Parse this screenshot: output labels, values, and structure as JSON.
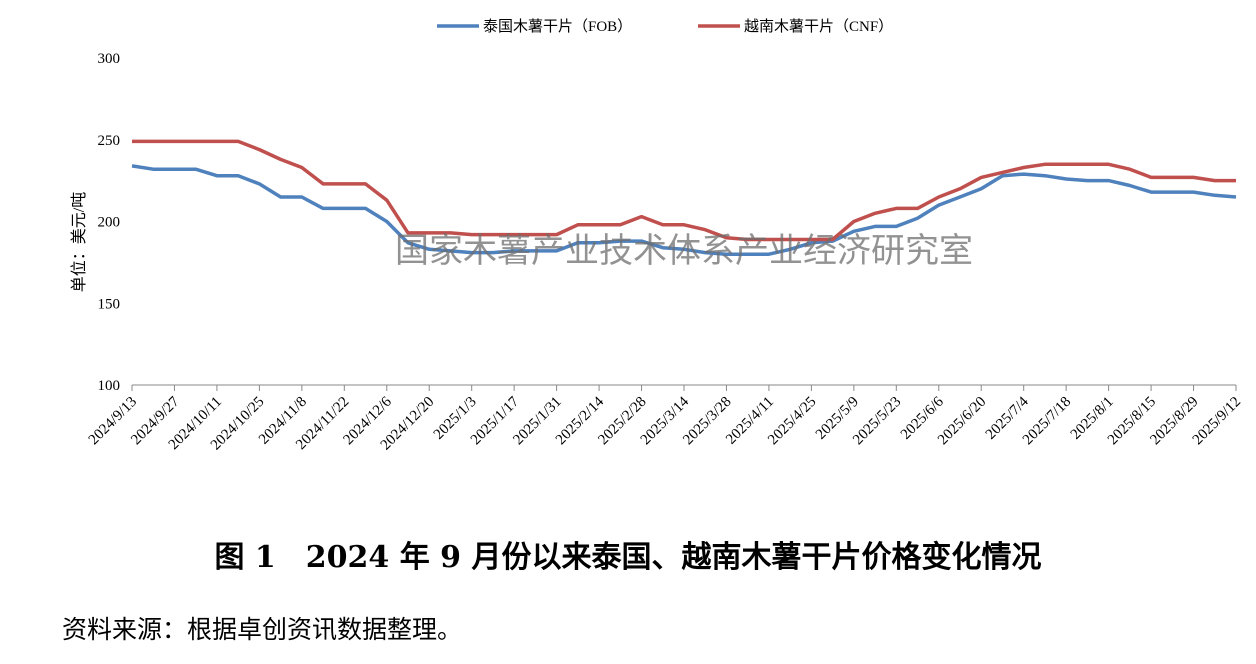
{
  "chart_data": {
    "type": "line",
    "ylabel": "单位：美元/吨",
    "ylim": [
      100,
      300
    ],
    "yticks": [
      100,
      150,
      200,
      250,
      300
    ],
    "grid": false,
    "legend_position": "top",
    "watermark": "国家木薯产业技术体系产业经济研究室",
    "x": [
      "2024/9/13",
      "2024/9/20",
      "2024/9/27",
      "2024/10/4",
      "2024/10/11",
      "2024/10/18",
      "2024/10/25",
      "2024/11/1",
      "2024/11/8",
      "2024/11/15",
      "2024/11/22",
      "2024/11/29",
      "2024/12/6",
      "2024/12/13",
      "2024/12/20",
      "2024/12/27",
      "2025/1/3",
      "2025/1/10",
      "2025/1/17",
      "2025/1/24",
      "2025/1/31",
      "2025/2/7",
      "2025/2/14",
      "2025/2/21",
      "2025/2/28",
      "2025/3/7",
      "2025/3/14",
      "2025/3/21",
      "2025/3/28",
      "2025/4/4",
      "2025/4/11",
      "2025/4/18",
      "2025/4/25",
      "2025/5/2",
      "2025/5/9",
      "2025/5/16",
      "2025/5/23",
      "2025/5/30",
      "2025/6/6",
      "2025/6/13",
      "2025/6/20",
      "2025/6/27",
      "2025/7/4",
      "2025/7/11",
      "2025/7/18",
      "2025/7/25",
      "2025/8/1",
      "2025/8/8",
      "2025/8/15",
      "2025/8/22",
      "2025/8/29",
      "2025/9/5",
      "2025/9/12"
    ],
    "xtick_labels": [
      "2024/9/13",
      "2024/9/27",
      "2024/10/11",
      "2024/10/25",
      "2024/11/8",
      "2024/11/22",
      "2024/12/6",
      "2024/12/20",
      "2025/1/3",
      "2025/1/17",
      "2025/1/31",
      "2025/2/14",
      "2025/2/28",
      "2025/3/14",
      "2025/3/28",
      "2025/4/11",
      "2025/4/25",
      "2025/5/9",
      "2025/5/23",
      "2025/6/6",
      "2025/6/20",
      "2025/7/4",
      "2025/7/18",
      "2025/8/1",
      "2025/8/15",
      "2025/8/29",
      "2025/9/12"
    ],
    "series": [
      {
        "name": "泰国木薯干片（FOB）",
        "color": "#4f81bd",
        "values": [
          234,
          232,
          232,
          232,
          228,
          228,
          223,
          215,
          215,
          208,
          208,
          208,
          200,
          187,
          183,
          182,
          181,
          181,
          182,
          182,
          182,
          187,
          187,
          188,
          188,
          184,
          183,
          181,
          180,
          180,
          180,
          183,
          187,
          188,
          194,
          197,
          197,
          202,
          210,
          215,
          220,
          228,
          229,
          228,
          226,
          225,
          225,
          222,
          218,
          218,
          218,
          216,
          215
        ]
      },
      {
        "name": "越南木薯干片（CNF）",
        "color": "#c0504d",
        "values": [
          249,
          249,
          249,
          249,
          249,
          249,
          244,
          238,
          233,
          223,
          223,
          223,
          213,
          193,
          193,
          193,
          192,
          192,
          192,
          192,
          192,
          198,
          198,
          198,
          203,
          198,
          198,
          195,
          190,
          189,
          189,
          189,
          189,
          189,
          200,
          205,
          208,
          208,
          215,
          220,
          227,
          230,
          233,
          235,
          235,
          235,
          235,
          232,
          227,
          227,
          227,
          225,
          225
        ]
      }
    ]
  },
  "caption": "图 1　2024 年 9 月份以来泰国、越南木薯干片价格变化情况",
  "source": "资料来源：根据卓创资讯数据整理。"
}
